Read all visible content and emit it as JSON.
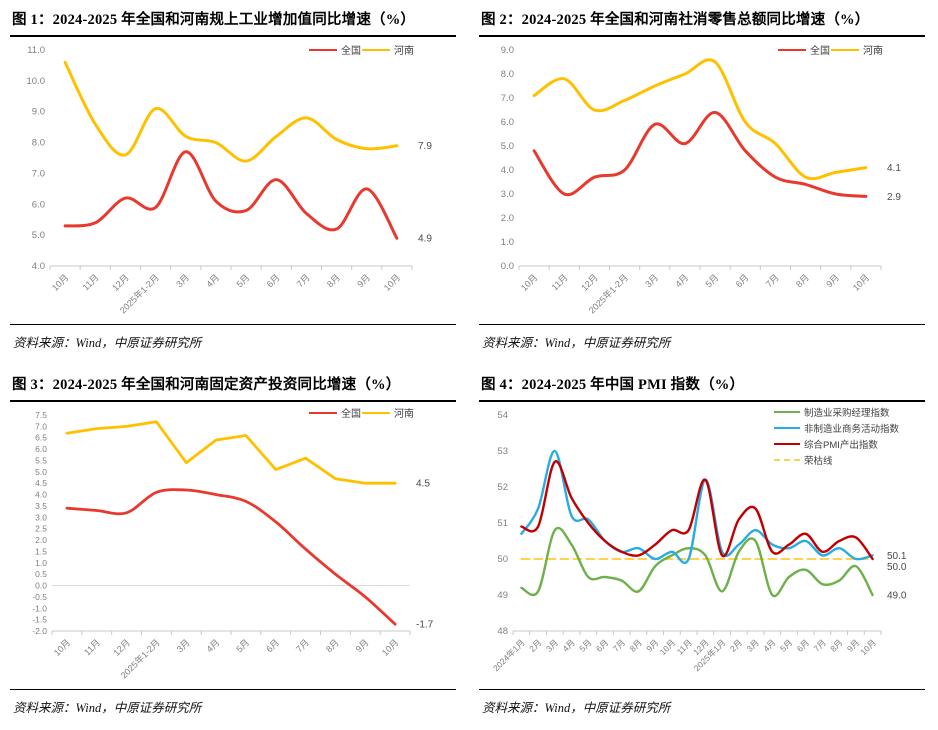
{
  "colors": {
    "national_red": "#E8392E",
    "henan_yellow": "#FFC000",
    "pmi_green": "#6EB04B",
    "pmi_blue": "#29ABE3",
    "pmi_dark_red": "#C00000",
    "boom_bust_yellow": "#FFD24D",
    "axis_text": "#7F7F7F",
    "axis_line": "#C8C8C8",
    "zero_line": "#D9D9D9",
    "end_label_text": "#4A4A4A"
  },
  "chart_data": [
    {
      "type": "line",
      "title": "图 1：2024-2025 年全国和河南规上工业增加值同比增速（%）",
      "source": "资料来源：Wind，中原证券研究所",
      "categories": [
        "10月",
        "11月",
        "12月",
        "2025年1-2月",
        "3月",
        "4月",
        "5月",
        "6月",
        "7月",
        "8月",
        "9月",
        "10月"
      ],
      "ylim": [
        4.0,
        11.0
      ],
      "ytick_step": 1.0,
      "ytick_decimals": 1,
      "grid": false,
      "legend_position": "top-right",
      "series": [
        {
          "name": "全国",
          "color_key": "national_red",
          "smooth": true,
          "values": [
            5.3,
            5.4,
            6.2,
            5.9,
            7.7,
            6.1,
            5.8,
            6.8,
            5.7,
            5.2,
            6.5,
            4.9
          ],
          "end_label": "4.9"
        },
        {
          "name": "河南",
          "color_key": "henan_yellow",
          "smooth": true,
          "values": [
            10.6,
            8.6,
            7.6,
            9.1,
            8.2,
            8.0,
            7.4,
            8.2,
            8.8,
            8.1,
            7.8,
            7.9
          ],
          "end_label": "7.9"
        }
      ]
    },
    {
      "type": "line",
      "title": "图 2：2024-2025 年全国和河南社消零售总额同比增速（%）",
      "source": "资料来源：Wind，中原证券研究所",
      "categories": [
        "10月",
        "11月",
        "12月",
        "2025年1-2月",
        "3月",
        "4月",
        "5月",
        "6月",
        "7月",
        "8月",
        "9月",
        "10月"
      ],
      "ylim": [
        0.0,
        9.0
      ],
      "ytick_step": 1.0,
      "ytick_decimals": 1,
      "grid": false,
      "legend_position": "top-right",
      "series": [
        {
          "name": "全国",
          "color_key": "national_red",
          "smooth": true,
          "values": [
            4.8,
            3.0,
            3.7,
            4.0,
            5.9,
            5.1,
            6.4,
            4.8,
            3.7,
            3.4,
            3.0,
            2.9
          ],
          "end_label": "2.9"
        },
        {
          "name": "河南",
          "color_key": "henan_yellow",
          "smooth": true,
          "values": [
            7.1,
            7.8,
            6.5,
            6.9,
            7.5,
            8.0,
            8.5,
            6.0,
            5.1,
            3.7,
            3.9,
            4.1
          ],
          "end_label": "4.1"
        }
      ]
    },
    {
      "type": "line",
      "title": "图 3：2024-2025 年全国和河南固定资产投资同比增速（%）",
      "source": "资料来源：Wind，中原证券研究所",
      "categories": [
        "10月",
        "11月",
        "12月",
        "2025年1-2月",
        "3月",
        "4月",
        "5月",
        "6月",
        "7月",
        "8月",
        "9月",
        "10月"
      ],
      "ylim": [
        -2.0,
        7.5
      ],
      "ytick_step": 0.5,
      "ytick_decimals": 1,
      "grid": false,
      "zero_line": true,
      "legend_position": "top-right",
      "series": [
        {
          "name": "全国",
          "color_key": "national_red",
          "smooth": true,
          "values": [
            3.4,
            3.3,
            3.2,
            4.1,
            4.2,
            4.0,
            3.7,
            2.8,
            1.6,
            0.5,
            -0.5,
            -1.7
          ],
          "end_label": "-1.7"
        },
        {
          "name": "河南",
          "color_key": "henan_yellow",
          "smooth": false,
          "values": [
            6.7,
            6.9,
            7.0,
            7.2,
            5.4,
            6.4,
            6.6,
            5.1,
            5.6,
            4.7,
            4.5,
            4.5
          ],
          "end_label": "4.5"
        }
      ]
    },
    {
      "type": "line",
      "title": "图 4：2024-2025 年中国 PMI 指数（%）",
      "source": "资料来源：Wind，中原证券研究所",
      "categories": [
        "2024年1月",
        "2月",
        "3月",
        "4月",
        "5月",
        "6月",
        "7月",
        "8月",
        "9月",
        "10月",
        "11月",
        "12月",
        "2025年1月",
        "2月",
        "3月",
        "4月",
        "5月",
        "6月",
        "7月",
        "8月",
        "9月",
        "10月"
      ],
      "ylim": [
        48,
        54
      ],
      "ytick_step": 1,
      "ytick_decimals": 0,
      "grid": false,
      "legend_position": "top-right-stacked",
      "series": [
        {
          "name": "荣枯线",
          "color_key": "boom_bust_yellow",
          "smooth": false,
          "dashed": true,
          "values": [
            50,
            50,
            50,
            50,
            50,
            50,
            50,
            50,
            50,
            50,
            50,
            50,
            50,
            50,
            50,
            50,
            50,
            50,
            50,
            50,
            50,
            50
          ],
          "end_label": null
        },
        {
          "name": "制造业采购经理指数",
          "color_key": "pmi_green",
          "smooth": true,
          "values": [
            49.2,
            49.1,
            50.8,
            50.4,
            49.5,
            49.5,
            49.4,
            49.1,
            49.8,
            50.1,
            50.3,
            50.1,
            49.1,
            50.2,
            50.5,
            49.0,
            49.5,
            49.7,
            49.3,
            49.4,
            49.8,
            49.0
          ],
          "end_label": "49.0"
        },
        {
          "name": "非制造业商务活动指数",
          "color_key": "pmi_blue",
          "smooth": true,
          "values": [
            50.7,
            51.4,
            53.0,
            51.2,
            51.1,
            50.5,
            50.2,
            50.3,
            50.0,
            50.2,
            50.0,
            52.2,
            50.2,
            50.4,
            50.8,
            50.4,
            50.3,
            50.5,
            50.1,
            50.3,
            50.0,
            50.1
          ],
          "end_label": "50.1"
        },
        {
          "name": "综合PMI产出指数",
          "color_key": "pmi_dark_red",
          "smooth": true,
          "values": [
            50.9,
            50.9,
            52.7,
            51.7,
            51.0,
            50.5,
            50.2,
            50.1,
            50.4,
            50.8,
            50.8,
            52.2,
            50.1,
            51.1,
            51.4,
            50.2,
            50.4,
            50.7,
            50.2,
            50.5,
            50.6,
            50.0
          ],
          "end_label": "50.0"
        }
      ],
      "legend_order": [
        "制造业采购经理指数",
        "非制造业商务活动指数",
        "综合PMI产出指数",
        "荣枯线"
      ]
    }
  ]
}
